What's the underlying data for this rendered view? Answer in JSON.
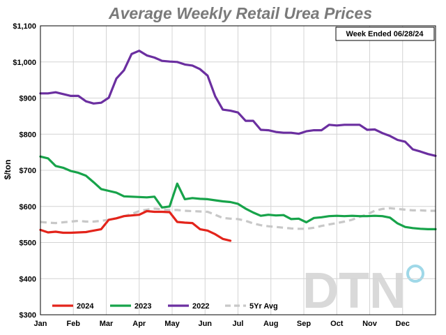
{
  "chart_data": {
    "type": "line",
    "title": "Average Weekly Retail Urea Prices",
    "ylabel": "$/ton",
    "xlabel": "",
    "annotation": "Week Ended 06/28/24",
    "logo": "DTN",
    "x_tick_labels": [
      "Jan",
      "Feb",
      "Mar",
      "Apr",
      "May",
      "Jun",
      "Jul",
      "Aug",
      "Sep",
      "Oct",
      "Nov",
      "Dec"
    ],
    "y_tick_labels": [
      "$300",
      "$400",
      "$500",
      "$600",
      "$700",
      "$800",
      "$900",
      "$1,000",
      "$1,100"
    ],
    "ylim": [
      300,
      1100
    ],
    "xlim": [
      1,
      53
    ],
    "grid": true,
    "legend_position": "bottom-left",
    "series": [
      {
        "name": "2024",
        "color": "#e3241b",
        "dash": "solid",
        "x": [
          1,
          2,
          3,
          4,
          5,
          6,
          7,
          8,
          9,
          10,
          11,
          12,
          13,
          14,
          15,
          16,
          17,
          18,
          19,
          20,
          21,
          22,
          23,
          24,
          25,
          26
        ],
        "y": [
          535,
          528,
          530,
          527,
          527,
          528,
          529,
          533,
          537,
          563,
          567,
          573,
          575,
          577,
          587,
          585,
          585,
          584,
          557,
          555,
          554,
          537,
          533,
          523,
          510,
          505
        ]
      },
      {
        "name": "2023",
        "color": "#17a34a",
        "dash": "solid",
        "x": [
          1,
          2,
          3,
          4,
          5,
          6,
          7,
          8,
          9,
          10,
          11,
          12,
          13,
          14,
          15,
          16,
          17,
          18,
          19,
          20,
          21,
          22,
          23,
          24,
          25,
          26,
          27,
          28,
          29,
          30,
          31,
          32,
          33,
          34,
          35,
          36,
          37,
          38,
          39,
          40,
          41,
          42,
          43,
          44,
          45,
          46,
          47,
          48,
          49,
          50,
          51,
          52,
          53
        ],
        "y": [
          738,
          733,
          712,
          707,
          698,
          693,
          685,
          667,
          648,
          643,
          638,
          628,
          627,
          626,
          625,
          627,
          597,
          600,
          663,
          620,
          623,
          621,
          620,
          617,
          614,
          612,
          607,
          594,
          583,
          574,
          577,
          575,
          576,
          565,
          566,
          556,
          568,
          570,
          573,
          574,
          573,
          574,
          573,
          573,
          574,
          573,
          569,
          553,
          543,
          540,
          538,
          537,
          537
        ]
      },
      {
        "name": "2022",
        "color": "#6b2fa0",
        "dash": "solid",
        "x": [
          1,
          2,
          3,
          4,
          5,
          6,
          7,
          8,
          9,
          10,
          11,
          12,
          13,
          14,
          15,
          16,
          17,
          18,
          19,
          20,
          21,
          22,
          23,
          24,
          25,
          26,
          27,
          28,
          29,
          30,
          31,
          32,
          33,
          34,
          35,
          36,
          37,
          38,
          39,
          40,
          41,
          42,
          43,
          44,
          45,
          46,
          47,
          48,
          49,
          50,
          51,
          52,
          53
        ],
        "y": [
          913,
          913,
          916,
          911,
          906,
          906,
          891,
          885,
          887,
          901,
          954,
          977,
          1022,
          1031,
          1018,
          1012,
          1003,
          1001,
          1000,
          993,
          990,
          980,
          962,
          905,
          868,
          865,
          860,
          837,
          837,
          812,
          811,
          806,
          804,
          804,
          801,
          808,
          811,
          811,
          826,
          824,
          826,
          826,
          826,
          812,
          813,
          803,
          795,
          784,
          779,
          758,
          752,
          745,
          740
        ]
      },
      {
        "name": "5Yr Avg",
        "color": "#c8c8c8",
        "dash": "dashed",
        "x": [
          1,
          2,
          3,
          4,
          5,
          6,
          7,
          8,
          9,
          10,
          11,
          12,
          13,
          14,
          15,
          16,
          17,
          18,
          19,
          20,
          21,
          22,
          23,
          24,
          25,
          26,
          27,
          28,
          29,
          30,
          31,
          32,
          33,
          34,
          35,
          36,
          37,
          38,
          39,
          40,
          41,
          42,
          43,
          44,
          45,
          46,
          47,
          48,
          49,
          50,
          51,
          52,
          53
        ],
        "y": [
          557,
          555,
          554,
          556,
          558,
          560,
          558,
          558,
          560,
          563,
          567,
          573,
          579,
          587,
          591,
          594,
          592,
          590,
          590,
          588,
          587,
          586,
          585,
          577,
          568,
          566,
          565,
          560,
          553,
          548,
          545,
          543,
          541,
          539,
          538,
          538,
          541,
          546,
          550,
          554,
          558,
          563,
          571,
          578,
          588,
          593,
          595,
          593,
          591,
          589,
          589,
          588,
          588
        ]
      }
    ]
  }
}
